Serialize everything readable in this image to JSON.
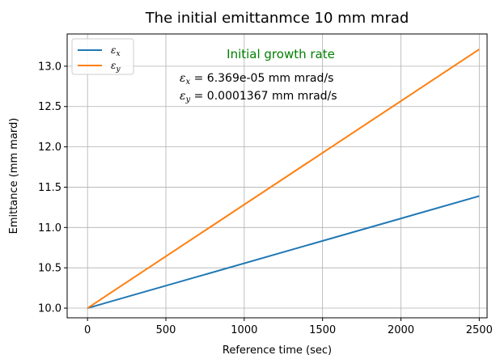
{
  "chart_data": {
    "type": "line",
    "title": "The initial emittanmce 10 mm mrad",
    "xlabel": "Reference time (sec)",
    "ylabel": "Emittance (mm mard)",
    "xlim": [
      -130,
      2550
    ],
    "ylim": [
      9.88,
      13.4
    ],
    "xticks": [
      0,
      500,
      1000,
      1500,
      2000,
      2500
    ],
    "yticks": [
      10.0,
      10.5,
      11.0,
      11.5,
      12.0,
      12.5,
      13.0
    ],
    "xtick_labels": [
      "0",
      "500",
      "1000",
      "1500",
      "2000",
      "2500"
    ],
    "ytick_labels": [
      "10.0",
      "10.5",
      "11.0",
      "11.5",
      "12.0",
      "12.5",
      "13.0"
    ],
    "grid": true,
    "legend_position": "top-left",
    "series": [
      {
        "name": "εx",
        "base": "ε",
        "sub": "x",
        "color": "#1f77b4",
        "x": [
          0,
          2500
        ],
        "y": [
          10.0,
          11.39
        ]
      },
      {
        "name": "εy",
        "base": "ε",
        "sub": "y",
        "color": "#ff7f0e",
        "x": [
          0,
          2500
        ],
        "y": [
          10.0,
          13.21
        ]
      }
    ],
    "annotations": {
      "title": "Initial growth rate",
      "title_color": "#008000",
      "lines": [
        {
          "sym": "ε",
          "sub": "x",
          "text": " = 6.369e-05 mm mrad/s"
        },
        {
          "sym": "ε",
          "sub": "y",
          "text": " = 0.0001367 mm mrad/s"
        }
      ]
    }
  }
}
